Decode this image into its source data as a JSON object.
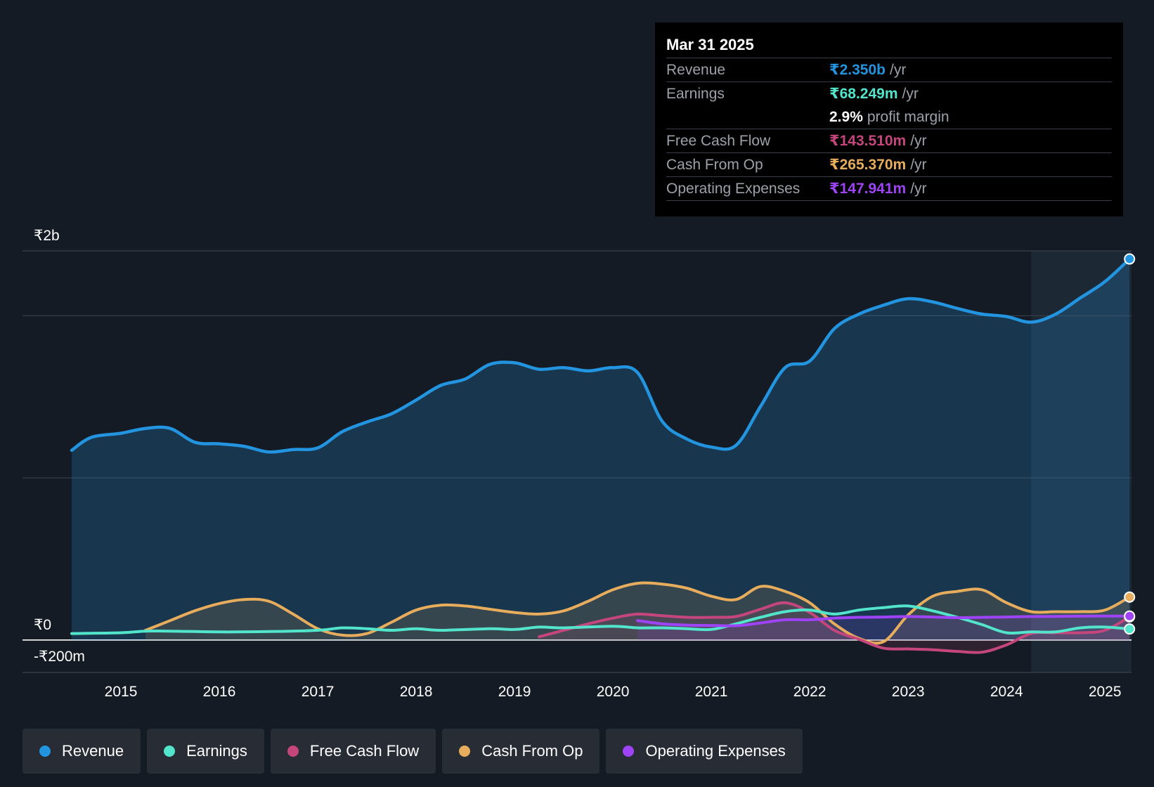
{
  "chart_data": {
    "type": "line",
    "currency": "₹",
    "y_tick_labels": [
      "₹2b",
      "₹0",
      "-₹200m"
    ],
    "ylim": [
      -200,
      2400
    ],
    "gridline_values": [
      2400,
      2000,
      1000,
      0,
      -200
    ],
    "x_ticks": [
      2015,
      2016,
      2017,
      2018,
      2019,
      2020,
      2021,
      2022,
      2023,
      2024,
      2025
    ],
    "x_tick_labels": [
      "2015",
      "2016",
      "2017",
      "2018",
      "2019",
      "2020",
      "2021",
      "2022",
      "2023",
      "2024",
      "2025"
    ],
    "xlim": [
      2014.0,
      2025.27
    ],
    "highlight_start": 2024.25,
    "series": [
      {
        "name": "Revenue",
        "color": "#2394df",
        "fill": true,
        "points": [
          [
            2014.5,
            1170
          ],
          [
            2014.7,
            1250
          ],
          [
            2015.0,
            1275
          ],
          [
            2015.25,
            1305
          ],
          [
            2015.5,
            1305
          ],
          [
            2015.75,
            1220
          ],
          [
            2016.0,
            1210
          ],
          [
            2016.25,
            1195
          ],
          [
            2016.5,
            1160
          ],
          [
            2016.75,
            1175
          ],
          [
            2017.0,
            1185
          ],
          [
            2017.25,
            1285
          ],
          [
            2017.5,
            1345
          ],
          [
            2017.75,
            1395
          ],
          [
            2018.0,
            1480
          ],
          [
            2018.25,
            1570
          ],
          [
            2018.5,
            1610
          ],
          [
            2018.75,
            1700
          ],
          [
            2019.0,
            1710
          ],
          [
            2019.25,
            1670
          ],
          [
            2019.5,
            1680
          ],
          [
            2019.75,
            1660
          ],
          [
            2020.0,
            1680
          ],
          [
            2020.25,
            1650
          ],
          [
            2020.5,
            1350
          ],
          [
            2020.75,
            1240
          ],
          [
            2021.0,
            1190
          ],
          [
            2021.25,
            1200
          ],
          [
            2021.5,
            1440
          ],
          [
            2021.75,
            1680
          ],
          [
            2022.0,
            1720
          ],
          [
            2022.25,
            1920
          ],
          [
            2022.5,
            2010
          ],
          [
            2022.75,
            2065
          ],
          [
            2023.0,
            2105
          ],
          [
            2023.25,
            2085
          ],
          [
            2023.5,
            2045
          ],
          [
            2023.75,
            2010
          ],
          [
            2024.0,
            1995
          ],
          [
            2024.25,
            1960
          ],
          [
            2024.5,
            2010
          ],
          [
            2024.75,
            2110
          ],
          [
            2025.0,
            2210
          ],
          [
            2025.25,
            2350
          ]
        ]
      },
      {
        "name": "Earnings",
        "color": "#52e5cc",
        "fill": false,
        "points": [
          [
            2014.5,
            40
          ],
          [
            2015.0,
            45
          ],
          [
            2015.25,
            55
          ],
          [
            2015.5,
            55
          ],
          [
            2016.0,
            50
          ],
          [
            2016.5,
            52
          ],
          [
            2017.0,
            60
          ],
          [
            2017.25,
            75
          ],
          [
            2017.5,
            70
          ],
          [
            2017.75,
            60
          ],
          [
            2018.0,
            70
          ],
          [
            2018.25,
            60
          ],
          [
            2018.75,
            70
          ],
          [
            2019.0,
            65
          ],
          [
            2019.25,
            80
          ],
          [
            2019.5,
            75
          ],
          [
            2020.0,
            85
          ],
          [
            2020.25,
            75
          ],
          [
            2020.5,
            75
          ],
          [
            2020.75,
            70
          ],
          [
            2021.0,
            65
          ],
          [
            2021.25,
            100
          ],
          [
            2021.5,
            140
          ],
          [
            2021.75,
            175
          ],
          [
            2022.0,
            185
          ],
          [
            2022.25,
            160
          ],
          [
            2022.5,
            185
          ],
          [
            2022.75,
            200
          ],
          [
            2023.0,
            210
          ],
          [
            2023.25,
            180
          ],
          [
            2023.5,
            140
          ],
          [
            2023.75,
            95
          ],
          [
            2024.0,
            45
          ],
          [
            2024.25,
            50
          ],
          [
            2024.5,
            50
          ],
          [
            2024.75,
            75
          ],
          [
            2025.0,
            80
          ],
          [
            2025.25,
            68
          ]
        ]
      },
      {
        "name": "Free Cash Flow",
        "color": "#c4467d",
        "fill": true,
        "points": [
          [
            2019.25,
            20
          ],
          [
            2019.5,
            60
          ],
          [
            2019.75,
            100
          ],
          [
            2020.0,
            135
          ],
          [
            2020.25,
            160
          ],
          [
            2020.5,
            150
          ],
          [
            2020.75,
            140
          ],
          [
            2021.0,
            140
          ],
          [
            2021.25,
            145
          ],
          [
            2021.5,
            190
          ],
          [
            2021.75,
            230
          ],
          [
            2022.0,
            170
          ],
          [
            2022.25,
            60
          ],
          [
            2022.5,
            5
          ],
          [
            2022.75,
            -50
          ],
          [
            2023.0,
            -55
          ],
          [
            2023.25,
            -60
          ],
          [
            2023.5,
            -70
          ],
          [
            2023.75,
            -75
          ],
          [
            2024.0,
            -30
          ],
          [
            2024.25,
            40
          ],
          [
            2024.5,
            45
          ],
          [
            2024.75,
            45
          ],
          [
            2025.0,
            60
          ],
          [
            2025.25,
            143
          ]
        ]
      },
      {
        "name": "Cash From Op",
        "color": "#e7ad5d",
        "fill": true,
        "points": [
          [
            2015.25,
            60
          ],
          [
            2015.5,
            120
          ],
          [
            2015.75,
            180
          ],
          [
            2016.0,
            225
          ],
          [
            2016.25,
            250
          ],
          [
            2016.5,
            240
          ],
          [
            2016.75,
            160
          ],
          [
            2017.0,
            70
          ],
          [
            2017.25,
            30
          ],
          [
            2017.5,
            40
          ],
          [
            2017.75,
            110
          ],
          [
            2018.0,
            185
          ],
          [
            2018.25,
            215
          ],
          [
            2018.5,
            210
          ],
          [
            2018.75,
            190
          ],
          [
            2019.0,
            170
          ],
          [
            2019.25,
            160
          ],
          [
            2019.5,
            180
          ],
          [
            2019.75,
            240
          ],
          [
            2020.0,
            310
          ],
          [
            2020.25,
            350
          ],
          [
            2020.5,
            345
          ],
          [
            2020.75,
            320
          ],
          [
            2021.0,
            270
          ],
          [
            2021.25,
            250
          ],
          [
            2021.5,
            330
          ],
          [
            2021.75,
            300
          ],
          [
            2022.0,
            230
          ],
          [
            2022.25,
            100
          ],
          [
            2022.5,
            10
          ],
          [
            2022.75,
            -10
          ],
          [
            2023.0,
            155
          ],
          [
            2023.25,
            270
          ],
          [
            2023.5,
            300
          ],
          [
            2023.75,
            310
          ],
          [
            2024.0,
            230
          ],
          [
            2024.25,
            175
          ],
          [
            2024.5,
            175
          ],
          [
            2024.75,
            175
          ],
          [
            2025.0,
            185
          ],
          [
            2025.25,
            265
          ]
        ]
      },
      {
        "name": "Operating Expenses",
        "color": "#9e43f5",
        "fill": true,
        "points": [
          [
            2020.25,
            120
          ],
          [
            2020.5,
            100
          ],
          [
            2020.75,
            92
          ],
          [
            2021.0,
            90
          ],
          [
            2021.25,
            88
          ],
          [
            2021.5,
            105
          ],
          [
            2021.75,
            125
          ],
          [
            2022.0,
            125
          ],
          [
            2022.25,
            135
          ],
          [
            2022.5,
            140
          ],
          [
            2022.75,
            142
          ],
          [
            2023.0,
            145
          ],
          [
            2023.25,
            142
          ],
          [
            2023.5,
            138
          ],
          [
            2023.75,
            140
          ],
          [
            2024.0,
            142
          ],
          [
            2024.25,
            145
          ],
          [
            2024.5,
            146
          ],
          [
            2024.75,
            147
          ],
          [
            2025.0,
            148
          ],
          [
            2025.25,
            148
          ]
        ]
      }
    ]
  },
  "tooltip": {
    "date": "Mar 31 2025",
    "rows": [
      {
        "label": "Revenue",
        "value": "₹2.350b",
        "unit": "/yr",
        "color": "#2394df"
      },
      {
        "label": "Earnings",
        "value": "₹68.249m",
        "unit": "/yr",
        "color": "#52e5cc"
      },
      {
        "label": "",
        "value": "2.9%",
        "unit": "profit margin",
        "color": "#ffffff"
      },
      {
        "label": "Free Cash Flow",
        "value": "₹143.510m",
        "unit": "/yr",
        "color": "#c4467d"
      },
      {
        "label": "Cash From Op",
        "value": "₹265.370m",
        "unit": "/yr",
        "color": "#e7ad5d"
      },
      {
        "label": "Operating Expenses",
        "value": "₹147.941m",
        "unit": "/yr",
        "color": "#9e43f5"
      }
    ]
  },
  "legend": [
    {
      "label": "Revenue",
      "color": "#2394df"
    },
    {
      "label": "Earnings",
      "color": "#52e5cc"
    },
    {
      "label": "Free Cash Flow",
      "color": "#c4467d"
    },
    {
      "label": "Cash From Op",
      "color": "#e7ad5d"
    },
    {
      "label": "Operating Expenses",
      "color": "#9e43f5"
    }
  ]
}
